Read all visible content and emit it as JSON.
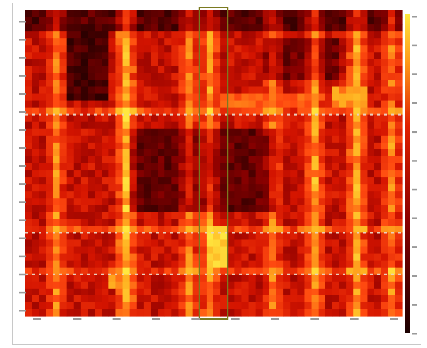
{
  "chart_data": {
    "type": "heatmap",
    "title": "",
    "xlabel": "",
    "ylabel": "",
    "colormap": [
      "#000000",
      "#3a0000",
      "#8a0000",
      "#d41400",
      "#ff4a10",
      "#ffb020",
      "#ffe840"
    ],
    "value_range": [
      0,
      1
    ],
    "n_rows": 44,
    "n_cols": 54,
    "vertical_bands": [
      {
        "col": 4,
        "intensity": 0.55
      },
      {
        "col": 14,
        "intensity": 0.85
      },
      {
        "col": 23,
        "intensity": 0.55
      },
      {
        "col": 26,
        "intensity": 0.65
      },
      {
        "col": 35,
        "intensity": 0.5
      },
      {
        "col": 41,
        "intensity": 0.7
      },
      {
        "col": 47,
        "intensity": 0.75
      },
      {
        "col": 52,
        "intensity": 0.55
      }
    ],
    "horizontal_bands": [
      {
        "row": 14,
        "intensity": 0.45
      },
      {
        "row": 31,
        "intensity": 0.4
      },
      {
        "row": 37,
        "intensity": 0.4
      }
    ],
    "dark_regions": [
      {
        "rows": [
          0,
          2
        ],
        "cols": [
          0,
          54
        ],
        "level": 0.15
      },
      {
        "rows": [
          3,
          12
        ],
        "cols": [
          6,
          12
        ],
        "level": 0.12
      },
      {
        "rows": [
          17,
          28
        ],
        "cols": [
          15,
          36
        ],
        "level": 0.18
      },
      {
        "rows": [
          4,
          9
        ],
        "cols": [
          34,
          45
        ],
        "level": 0.2
      }
    ],
    "bright_regions": [
      {
        "rows": [
          31,
          36
        ],
        "cols": [
          26,
          28
        ],
        "level": 1.0
      },
      {
        "rows": [
          37,
          39
        ],
        "cols": [
          12,
          14
        ],
        "level": 0.85
      },
      {
        "rows": [
          12,
          13
        ],
        "cols": [
          28,
          40
        ],
        "level": 0.75
      },
      {
        "rows": [
          11,
          13
        ],
        "cols": [
          44,
          48
        ],
        "level": 0.85
      }
    ],
    "highlight_column": [
      25,
      28
    ],
    "dashed_rows": [
      15,
      32,
      38
    ],
    "colorbar": {
      "position": "right"
    }
  }
}
